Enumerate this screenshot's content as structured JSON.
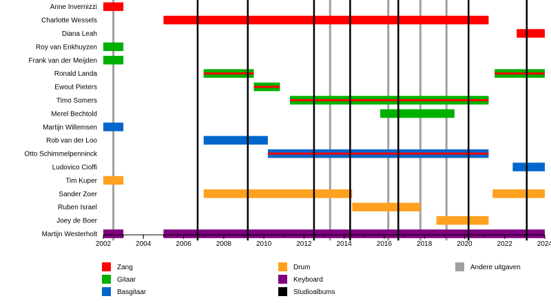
{
  "chart_data": {
    "type": "timeline",
    "xlim": [
      2002,
      2024
    ],
    "x_ticks": [
      "2002",
      "2004",
      "2006",
      "2008",
      "2010",
      "2012",
      "2014",
      "2016",
      "2018",
      "2020",
      "2022",
      "2024"
    ],
    "colors": {
      "Zang": "#ff0000",
      "Gitaar": "#00b000",
      "Basgitaar": "#0066cc",
      "Drum": "#ffa020",
      "Keyboard": "#7f007f",
      "Studioalbums": "#000000",
      "Andere uitgaven": "#a0a0a0"
    },
    "members": [
      {
        "name": "Anne Invernizzi",
        "bars": [
          {
            "start": 2002.0,
            "end": 2003.0,
            "role": "Zang"
          }
        ]
      },
      {
        "name": "Charlotte Wessels",
        "bars": [
          {
            "start": 2005.0,
            "end": 2021.2,
            "role": "Zang"
          }
        ]
      },
      {
        "name": "Diana Leah",
        "bars": [
          {
            "start": 2022.6,
            "end": 2024.0,
            "role": "Zang"
          }
        ]
      },
      {
        "name": "Roy van Enkhuyzen",
        "bars": [
          {
            "start": 2002.0,
            "end": 2003.0,
            "role": "Gitaar"
          }
        ]
      },
      {
        "name": "Frank van der Meijden",
        "bars": [
          {
            "start": 2002.0,
            "end": 2003.0,
            "role": "Gitaar"
          }
        ]
      },
      {
        "name": "Ronald Landa",
        "bars": [
          {
            "start": 2007.0,
            "end": 2009.5,
            "role": "Gitaar",
            "overlay": "Zang"
          },
          {
            "start": 2021.5,
            "end": 2024.0,
            "role": "Gitaar",
            "overlay": "Zang"
          }
        ]
      },
      {
        "name": "Ewout Pieters",
        "bars": [
          {
            "start": 2009.5,
            "end": 2010.8,
            "role": "Gitaar",
            "overlay": "Zang"
          }
        ]
      },
      {
        "name": "Timo Somers",
        "bars": [
          {
            "start": 2011.3,
            "end": 2021.2,
            "role": "Gitaar",
            "overlay": "Zang"
          }
        ]
      },
      {
        "name": "Merel Bechtold",
        "bars": [
          {
            "start": 2015.8,
            "end": 2019.5,
            "role": "Gitaar"
          }
        ]
      },
      {
        "name": "Martijn Willemsen",
        "bars": [
          {
            "start": 2002.0,
            "end": 2003.0,
            "role": "Basgitaar"
          }
        ]
      },
      {
        "name": "Rob van der Loo",
        "bars": [
          {
            "start": 2007.0,
            "end": 2010.2,
            "role": "Basgitaar"
          }
        ]
      },
      {
        "name": "Otto Schimmelpenninck",
        "bars": [
          {
            "start": 2010.2,
            "end": 2021.2,
            "role": "Basgitaar",
            "overlay": "Zang"
          }
        ]
      },
      {
        "name": "Ludovico Cioffi",
        "bars": [
          {
            "start": 2022.4,
            "end": 2024.0,
            "role": "Basgitaar"
          }
        ]
      },
      {
        "name": "Tim Kuper",
        "bars": [
          {
            "start": 2002.0,
            "end": 2003.0,
            "role": "Drum"
          }
        ]
      },
      {
        "name": "Sander Zoer",
        "bars": [
          {
            "start": 2007.0,
            "end": 2014.4,
            "role": "Drum"
          },
          {
            "start": 2021.4,
            "end": 2024.0,
            "role": "Drum"
          }
        ]
      },
      {
        "name": "Ruben Israel",
        "bars": [
          {
            "start": 2014.4,
            "end": 2017.8,
            "role": "Drum"
          }
        ]
      },
      {
        "name": "Joey de Boer",
        "bars": [
          {
            "start": 2018.6,
            "end": 2021.2,
            "role": "Drum"
          }
        ]
      },
      {
        "name": "Martijn Westerholt",
        "bars": [
          {
            "start": 2002.0,
            "end": 2003.0,
            "role": "Keyboard"
          },
          {
            "start": 2005.0,
            "end": 2024.0,
            "role": "Keyboard"
          }
        ]
      }
    ],
    "studio_albums": [
      2006.7,
      2009.2,
      2012.5,
      2014.3,
      2016.7,
      2020.2,
      2023.1
    ],
    "other_releases": [
      2002.5,
      2013.3,
      2016.2,
      2017.8,
      2019.1
    ],
    "legend": [
      {
        "label": "Zang",
        "role": "Zang"
      },
      {
        "label": "Gitaar",
        "role": "Gitaar"
      },
      {
        "label": "Basgitaar",
        "role": "Basgitaar"
      },
      {
        "label": "Drum",
        "role": "Drum"
      },
      {
        "label": "Keyboard",
        "role": "Keyboard"
      },
      {
        "label": "Studioalbums",
        "role": "Studioalbums"
      },
      {
        "label": "Andere uitgaven",
        "role": "Andere uitgaven"
      }
    ]
  }
}
